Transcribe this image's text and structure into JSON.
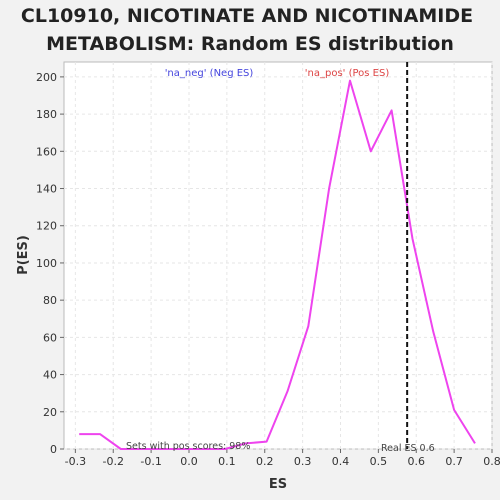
{
  "title_line1": "CL10910, NICOTINATE AND NICOTINAMIDE",
  "title_line2": "METABOLISM: Random ES distribution",
  "chart_data": {
    "type": "line",
    "xlabel": "ES",
    "ylabel": "P(ES)",
    "xlim": [
      -0.33,
      0.8
    ],
    "ylim": [
      0,
      208
    ],
    "x_ticks": [
      -0.3,
      -0.2,
      -0.1,
      0.0,
      0.1,
      0.2,
      0.3,
      0.4,
      0.5,
      0.6,
      0.7,
      0.8
    ],
    "y_ticks": [
      0,
      20,
      40,
      60,
      80,
      100,
      120,
      140,
      160,
      180,
      200
    ],
    "grid": true,
    "series": [
      {
        "color": "#ee44ee",
        "x": [
          -0.29,
          -0.235,
          -0.18,
          -0.125,
          -0.07,
          -0.015,
          0.04,
          0.095,
          0.15,
          0.205,
          0.26,
          0.315,
          0.37,
          0.425,
          0.48,
          0.535,
          0.59,
          0.645,
          0.7,
          0.755
        ],
        "y": [
          8,
          8,
          0,
          0,
          0,
          0,
          0,
          0,
          3,
          4,
          31,
          66,
          140,
          198,
          160,
          182,
          113,
          63,
          21,
          3
        ]
      }
    ],
    "real_es": 0.576,
    "real_es_label": "Real ES 0.6",
    "legend": [
      {
        "text": "'na_neg' (Neg ES)",
        "color": "#4444dd"
      },
      {
        "text": "'na_pos' (Pos ES)",
        "color": "#dd4444"
      }
    ],
    "annotation": "Sets with pos scores: 98%"
  }
}
